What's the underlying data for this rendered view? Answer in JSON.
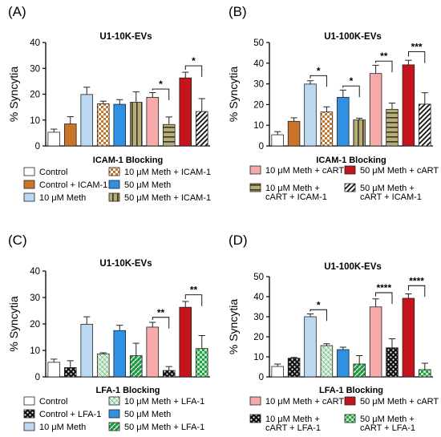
{
  "palette": {
    "control": "#ffffff",
    "orange": "#c8752a",
    "lightblue": "#bcd8f0",
    "blue": "#2f90e4",
    "pink": "#f6aaaa",
    "red": "#c4141c",
    "tan": "#b8ad78",
    "lightgreen": "#bfe6c4",
    "green": "#1fa347",
    "black": "#111111"
  },
  "chart_data": [
    {
      "panel": "(A)",
      "type": "bar",
      "title": "U1-10K-EVs",
      "ylabel": "% Syncytia",
      "xlabel": "ICAM-1 Blocking",
      "ylim": [
        0,
        40
      ],
      "yticks": [
        0,
        10,
        20,
        30,
        40
      ],
      "grid": false,
      "legend_position": "bottom",
      "categories": [
        "Control",
        "Control + ICAM-1",
        "10 μM Meth",
        "10 μM Meth + ICAM-1",
        "50 μM Meth",
        "50 μM Meth + ICAM-1",
        "10 μM Meth + cART",
        "10 μM Meth + cART + ICAM-1",
        "50 μM Meth + cART",
        "50 μM Meth + cART + ICAM-1"
      ],
      "values": [
        5.3,
        8.5,
        19.9,
        16.3,
        16.1,
        16.9,
        18.8,
        8.3,
        26.3,
        13.3
      ],
      "errors": [
        1.2,
        2.8,
        2.8,
        1.0,
        1.8,
        4.0,
        1.8,
        2.9,
        2.2,
        5.0
      ],
      "colors": [
        "control",
        "orange",
        "lightblue",
        "orange",
        "blue",
        "tan",
        "pink",
        "tan",
        "red",
        "control"
      ],
      "patterns": [
        "none",
        "none",
        "none",
        "check",
        "none",
        "vstripe",
        "none",
        "hstripe",
        "none",
        "diag"
      ],
      "significance": [
        {
          "from": 6,
          "to": 7,
          "label": "*",
          "y": 22
        },
        {
          "from": 8,
          "to": 9,
          "label": "*",
          "y": 31
        }
      ],
      "legend": [
        {
          "index": 0,
          "label": "Control"
        },
        {
          "index": 3,
          "label": "10 μM Meth + ICAM-1"
        },
        {
          "index": 1,
          "label": "Control + ICAM-1"
        },
        {
          "index": 4,
          "label": "50 μM Meth"
        },
        {
          "index": 2,
          "label": "10 μM Meth"
        },
        {
          "index": 5,
          "label": "50 μM Meth + ICAM-1"
        }
      ]
    },
    {
      "panel": "(B)",
      "type": "bar",
      "title": "U1-100K-EVs",
      "ylabel": "% Syncytia",
      "xlabel": "ICAM-1 Blocking",
      "ylim": [
        0,
        50
      ],
      "yticks": [
        0,
        10,
        20,
        30,
        40,
        50
      ],
      "grid": false,
      "legend_position": "bottom",
      "categories": [
        "Control",
        "Control + ICAM-1",
        "10 μM Meth",
        "10 μM Meth + ICAM-1",
        "50 μM Meth",
        "50 μM Meth + ICAM-1",
        "10 μM Meth + cART",
        "10 μM Meth + cART + ICAM-1",
        "50 μM Meth + cART",
        "50 μM Meth + cART + ICAM-1"
      ],
      "values": [
        5.4,
        11.9,
        29.9,
        16.4,
        23.5,
        12.6,
        35.0,
        17.7,
        39.2,
        20.2
      ],
      "errors": [
        1.5,
        1.7,
        1.6,
        2.5,
        3.5,
        0.8,
        4.0,
        3.0,
        2.2,
        5.5
      ],
      "colors": [
        "control",
        "orange",
        "lightblue",
        "orange",
        "blue",
        "tan",
        "pink",
        "tan",
        "red",
        "control"
      ],
      "patterns": [
        "none",
        "none",
        "none",
        "check",
        "none",
        "vstripe",
        "none",
        "hstripe",
        "none",
        "diag"
      ],
      "significance": [
        {
          "from": 2,
          "to": 3,
          "label": "*",
          "y": 34
        },
        {
          "from": 4,
          "to": 5,
          "label": "*",
          "y": 29
        },
        {
          "from": 6,
          "to": 7,
          "label": "**",
          "y": 41
        },
        {
          "from": 8,
          "to": 9,
          "label": "***",
          "y": 45.5
        }
      ],
      "legend": [
        {
          "index": 6,
          "label": "10 μM Meth + cART"
        },
        {
          "index": 8,
          "label": "50 μM Meth + cART"
        },
        {
          "index": 7,
          "label": "10 μM Meth +",
          "label2": "cART + ICAM-1"
        },
        {
          "index": 9,
          "label": "50 μM Meth +",
          "label2": "cART + ICAM-1"
        }
      ]
    },
    {
      "panel": "(C)",
      "type": "bar",
      "title": "U1-10K-EVs",
      "ylabel": "% Syncytia",
      "xlabel": "LFA-1 Blocking",
      "ylim": [
        0,
        40
      ],
      "yticks": [
        0,
        10,
        20,
        30,
        40
      ],
      "grid": false,
      "legend_position": "bottom",
      "categories": [
        "Control",
        "Control + LFA-1",
        "10 μM Meth",
        "10 μM Meth + LFA-1",
        "50 μM Meth",
        "50 μM Meth + LFA-1",
        "10 μM Meth + cART",
        "10 μM Meth + cART + LFA-1",
        "50 μM Meth + cART",
        "50 μM Meth + cART + LFA-1"
      ],
      "values": [
        5.5,
        3.5,
        19.9,
        8.7,
        17.5,
        8.0,
        18.8,
        2.4,
        26.3,
        10.7
      ],
      "errors": [
        1.2,
        2.6,
        2.8,
        0.4,
        2.0,
        4.7,
        1.8,
        1.5,
        2.2,
        4.9
      ],
      "colors": [
        "control",
        "black",
        "lightblue",
        "lightgreen",
        "blue",
        "green",
        "pink",
        "black",
        "red",
        "lightgreen"
      ],
      "patterns": [
        "none",
        "dots",
        "none",
        "hatch",
        "none",
        "hatch",
        "none",
        "dots",
        "none",
        "grid"
      ],
      "significance": [
        {
          "from": 6,
          "to": 7,
          "label": "**",
          "y": 22.5
        },
        {
          "from": 8,
          "to": 9,
          "label": "**",
          "y": 31
        }
      ],
      "legend": [
        {
          "index": 0,
          "label": "Control"
        },
        {
          "index": 3,
          "label": "10 μM Meth + LFA-1"
        },
        {
          "index": 1,
          "label": "Control + LFA-1"
        },
        {
          "index": 4,
          "label": "50 μM Meth"
        },
        {
          "index": 2,
          "label": "10 μM Meth"
        },
        {
          "index": 5,
          "label": "50 μM Meth + LFA-1"
        }
      ]
    },
    {
      "panel": "(D)",
      "type": "bar",
      "title": "U1-100K-EVs",
      "ylabel": "% Syncytia",
      "xlabel": "LFA-1 Blocking",
      "ylim": [
        0,
        50
      ],
      "yticks": [
        0,
        10,
        20,
        30,
        40,
        50
      ],
      "grid": false,
      "legend_position": "bottom",
      "categories": [
        "Control",
        "Control + LFA-1",
        "10 μM Meth",
        "10 μM Meth + LFA-1",
        "50 μM Meth",
        "50 μM Meth + LFA-1",
        "10 μM Meth + cART",
        "10 μM Meth + cART + LFA-1",
        "50 μM Meth + cART",
        "50 μM Meth + cART + LFA-1"
      ],
      "values": [
        5.2,
        9.3,
        30.0,
        15.6,
        13.6,
        6.4,
        34.9,
        14.5,
        39.2,
        3.6
      ],
      "errors": [
        1.2,
        0.4,
        1.4,
        0.9,
        1.2,
        4.2,
        4.0,
        4.5,
        2.2,
        3.2
      ],
      "colors": [
        "control",
        "black",
        "lightblue",
        "lightgreen",
        "blue",
        "green",
        "pink",
        "black",
        "red",
        "lightgreen"
      ],
      "patterns": [
        "none",
        "dots",
        "none",
        "hatch",
        "none",
        "hatch",
        "none",
        "dots",
        "none",
        "grid"
      ],
      "significance": [
        {
          "from": 2,
          "to": 3,
          "label": "*",
          "y": 33.5
        },
        {
          "from": 6,
          "to": 7,
          "label": "****",
          "y": 42
        },
        {
          "from": 8,
          "to": 9,
          "label": "****",
          "y": 45.5
        }
      ],
      "legend": [
        {
          "index": 6,
          "label": "10 μM Meth + cART"
        },
        {
          "index": 8,
          "label": "50 μM Meth + cART"
        },
        {
          "index": 7,
          "label": "10 μM Meth +",
          "label2": "cART + LFA-1"
        },
        {
          "index": 9,
          "label": "50 μM Meth +",
          "label2": "cART + LFA-1"
        }
      ]
    }
  ]
}
